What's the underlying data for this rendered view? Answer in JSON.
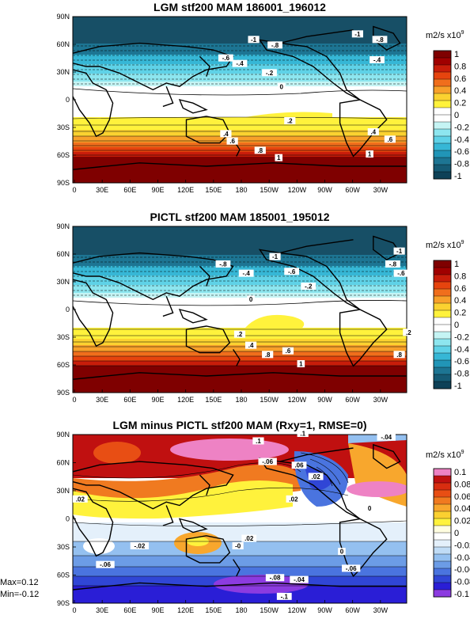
{
  "panels": [
    {
      "title": "LGM stf200 MAM 186001_196012",
      "units": "m2/s x10",
      "units_exp": "9",
      "colorbar_labels": [
        "1",
        "0.8",
        "0.6",
        "0.4",
        "0.2",
        "0",
        "-0.2",
        "-0.4",
        "-0.6",
        "-0.8",
        "-1"
      ],
      "colorbar_colors": [
        "#7f0000",
        "#a00000",
        "#c81d0a",
        "#e6440e",
        "#f06e1c",
        "#f8a02a",
        "#fbd230",
        "#fff23c",
        "#ffffff",
        "#ffffff",
        "#c5f4f4",
        "#8de6ef",
        "#5fd2e7",
        "#36b7d6",
        "#2195b7",
        "#1d7593",
        "#155a74",
        "#0e4157"
      ],
      "contour_labels": [
        {
          "text": "-1",
          "lon": 195,
          "lat": 64
        },
        {
          "text": "-.8",
          "lon": 218,
          "lat": 58
        },
        {
          "text": "-.6",
          "lon": 165,
          "lat": 44
        },
        {
          "text": "-.4",
          "lon": 180,
          "lat": 38
        },
        {
          "text": "-.2",
          "lon": 212,
          "lat": 28
        },
        {
          "text": "0",
          "lon": 225,
          "lat": 13
        },
        {
          "text": ".2",
          "lon": 234,
          "lat": -24
        },
        {
          "text": ".4",
          "lon": 165,
          "lat": -38
        },
        {
          "text": ".6",
          "lon": 172,
          "lat": -46
        },
        {
          "text": ".8",
          "lon": 202,
          "lat": -56
        },
        {
          "text": "1",
          "lon": 222,
          "lat": -64
        },
        {
          "text": "-1",
          "lon": 307,
          "lat": 70
        },
        {
          "text": "-.8",
          "lon": 331,
          "lat": 64
        },
        {
          "text": "-.4",
          "lon": 328,
          "lat": 42
        },
        {
          "text": ".4",
          "lon": 324,
          "lat": -36
        },
        {
          "text": ".6",
          "lon": 342,
          "lat": -44
        },
        {
          "text": "1",
          "lon": 320,
          "lat": -60
        }
      ]
    },
    {
      "title": "PICTL stf200 MAM 185001_195012",
      "units": "m2/s x10",
      "units_exp": "9",
      "colorbar_labels": [
        "1",
        "0.8",
        "0.6",
        "0.4",
        "0.2",
        "0",
        "-0.2",
        "-0.4",
        "-0.6",
        "-0.8",
        "-1"
      ],
      "colorbar_colors": [
        "#7f0000",
        "#a00000",
        "#c81d0a",
        "#e6440e",
        "#f06e1c",
        "#f8a02a",
        "#fbd230",
        "#fff23c",
        "#ffffff",
        "#ffffff",
        "#c5f4f4",
        "#8de6ef",
        "#5fd2e7",
        "#36b7d6",
        "#2195b7",
        "#1d7593",
        "#155a74",
        "#0e4157"
      ],
      "contour_labels": [
        {
          "text": "-1",
          "lon": 218,
          "lat": 56
        },
        {
          "text": "-.8",
          "lon": 162,
          "lat": 48
        },
        {
          "text": "-.4",
          "lon": 187,
          "lat": 38
        },
        {
          "text": "-.6",
          "lon": 236,
          "lat": 40
        },
        {
          "text": "-.2",
          "lon": 254,
          "lat": 24
        },
        {
          "text": "0",
          "lon": 192,
          "lat": 10
        },
        {
          "text": ".2",
          "lon": 180,
          "lat": -28
        },
        {
          "text": ".4",
          "lon": 192,
          "lat": -40
        },
        {
          "text": ".6",
          "lon": 232,
          "lat": -46
        },
        {
          "text": ".8",
          "lon": 210,
          "lat": -50
        },
        {
          "text": "1",
          "lon": 246,
          "lat": -60
        },
        {
          "text": "-.8",
          "lon": 345,
          "lat": 48
        },
        {
          "text": "-1",
          "lon": 352,
          "lat": 62
        },
        {
          "text": "-.6",
          "lon": 354,
          "lat": 38
        },
        {
          "text": ".2",
          "lon": 362,
          "lat": -26
        },
        {
          "text": ".8",
          "lon": 352,
          "lat": -50
        }
      ]
    },
    {
      "title": "LGM minus PICTL stf200 MAM (Rxy=1, RMSE=0)",
      "units": "m2/s x10",
      "units_exp": "9",
      "colorbar_labels": [
        "0.1",
        "0.08",
        "0.06",
        "0.04",
        "0.02",
        "0",
        "-0.02",
        "-0.04",
        "-0.06",
        "-0.08",
        "-0.1"
      ],
      "colorbar_colors": [
        "#ee82c4",
        "#c01010",
        "#d82d10",
        "#e84e14",
        "#f07a20",
        "#f8a72d",
        "#fbd030",
        "#fff23c",
        "#fffde0",
        "#ffffff",
        "#e4f0fb",
        "#c0dcf6",
        "#94c0f0",
        "#6c9ce6",
        "#4a74df",
        "#3046d6",
        "#2a1ed6",
        "#8c3be0"
      ],
      "contour_labels": [
        {
          "text": "-.04",
          "lon": 338,
          "lat": 86
        },
        {
          "text": ".1",
          "lon": 200,
          "lat": 82
        },
        {
          "text": ".1",
          "lon": 248,
          "lat": 90
        },
        {
          "text": "-.06",
          "lon": 210,
          "lat": 60
        },
        {
          "text": ".06",
          "lon": 244,
          "lat": 56
        },
        {
          "text": ".02",
          "lon": 262,
          "lat": 44
        },
        {
          "text": ".02",
          "lon": 8,
          "lat": 20
        },
        {
          "text": ".02",
          "lon": 238,
          "lat": 20
        },
        {
          "text": "0",
          "lon": 320,
          "lat": 10
        },
        {
          "text": "-.02",
          "lon": 72,
          "lat": -30
        },
        {
          "text": "-0",
          "lon": 178,
          "lat": -30
        },
        {
          "text": "0",
          "lon": 290,
          "lat": -36
        },
        {
          "text": ".02",
          "lon": 190,
          "lat": -22
        },
        {
          "text": "-.04",
          "lon": 244,
          "lat": -66
        },
        {
          "text": "-.06",
          "lon": 35,
          "lat": -50
        },
        {
          "text": "-.06",
          "lon": 300,
          "lat": -54
        },
        {
          "text": "-.08",
          "lon": 218,
          "lat": -64
        },
        {
          "text": "-.1",
          "lon": 228,
          "lat": -84
        }
      ]
    }
  ],
  "lon_ticks": [
    "0",
    "30E",
    "60E",
    "90E",
    "120E",
    "150E",
    "180",
    "150W",
    "120W",
    "90W",
    "60W",
    "30W"
  ],
  "lat_ticks": [
    "90N",
    "60N",
    "30N",
    "0",
    "30S",
    "60S",
    "90S"
  ],
  "stats": {
    "max": "Max=0.12",
    "min": "Min=-0.12"
  }
}
